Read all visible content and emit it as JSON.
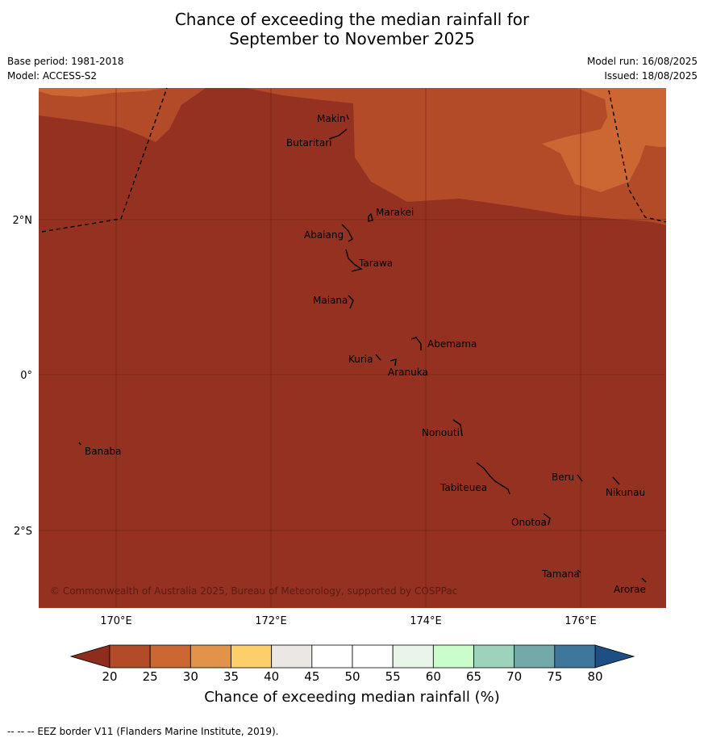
{
  "title_line1": "Chance of exceeding the median rainfall for",
  "title_line2": "September to November 2025",
  "base_period": "Base period: 1981-2018",
  "model": "Model: ACCESS-S2",
  "model_run": "Model run: 16/08/2025",
  "issued": "Issued: 18/08/2025",
  "lat_labels": [
    "2°N",
    "0°",
    "2°S"
  ],
  "lon_labels": [
    "170°E",
    "172°E",
    "174°E",
    "176°E"
  ],
  "places": [
    "Makin",
    "Butaritari",
    "Marakei",
    "Abaiang",
    "Tarawa",
    "Maiana",
    "Abemama",
    "Kuria",
    "Aranuka",
    "Nonouti",
    "Banaba",
    "Tabiteuea",
    "Beru",
    "Nikunau",
    "Onotoa",
    "Tamana",
    "Arorae"
  ],
  "copyright": "© Commonwealth of Australia 2025, Bureau of Meteorology, supported by COSPPac",
  "colorbar": {
    "ticks": [
      "20",
      "25",
      "30",
      "35",
      "40",
      "45",
      "50",
      "55",
      "60",
      "65",
      "70",
      "75",
      "80"
    ],
    "colors": [
      "#b34a28",
      "#cc6632",
      "#e29349",
      "#fdcf6a",
      "#ebe7e4",
      "#ffffff",
      "#ffffff",
      "#e9f5e9",
      "#cbfccb",
      "#9fd2bd",
      "#74a9a9",
      "#3f779c"
    ],
    "low_color": "#8e2c1e",
    "high_color": "#1d4f85",
    "label": "Chance of exceeding median rainfall (%)"
  },
  "footer": "--  --  -- EEZ border V11 (Flanders Marine Institute, 2019)."
}
